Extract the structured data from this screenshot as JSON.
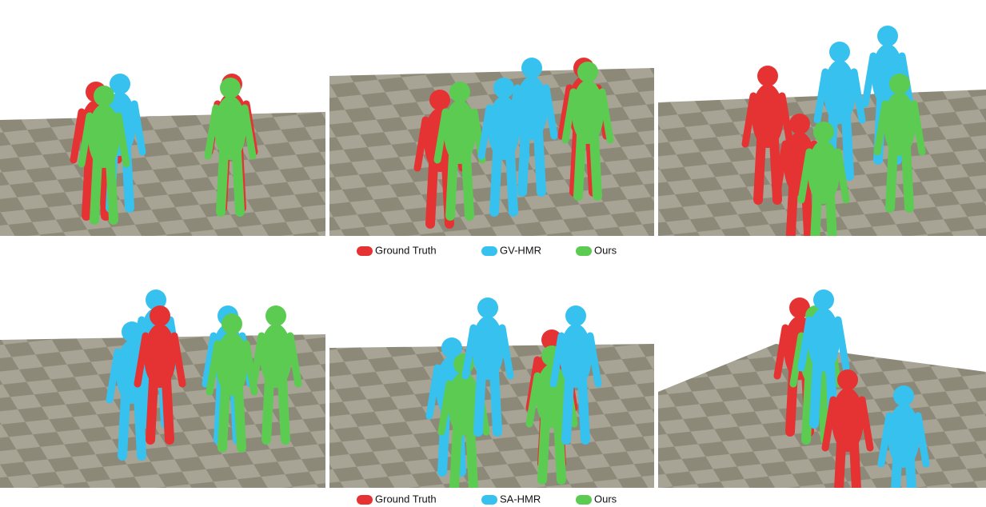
{
  "figure": {
    "rows": [
      {
        "legend": [
          {
            "label": "Ground Truth",
            "color": "#e53333"
          },
          {
            "label": "GV-HMR",
            "color": "#36c1ef"
          },
          {
            "label": "Ours",
            "color": "#5ccb52"
          }
        ]
      },
      {
        "legend": [
          {
            "label": "Ground Truth",
            "color": "#e53333"
          },
          {
            "label": "SA-HMR",
            "color": "#36c1ef"
          },
          {
            "label": "Ours",
            "color": "#5ccb52"
          }
        ]
      }
    ]
  }
}
